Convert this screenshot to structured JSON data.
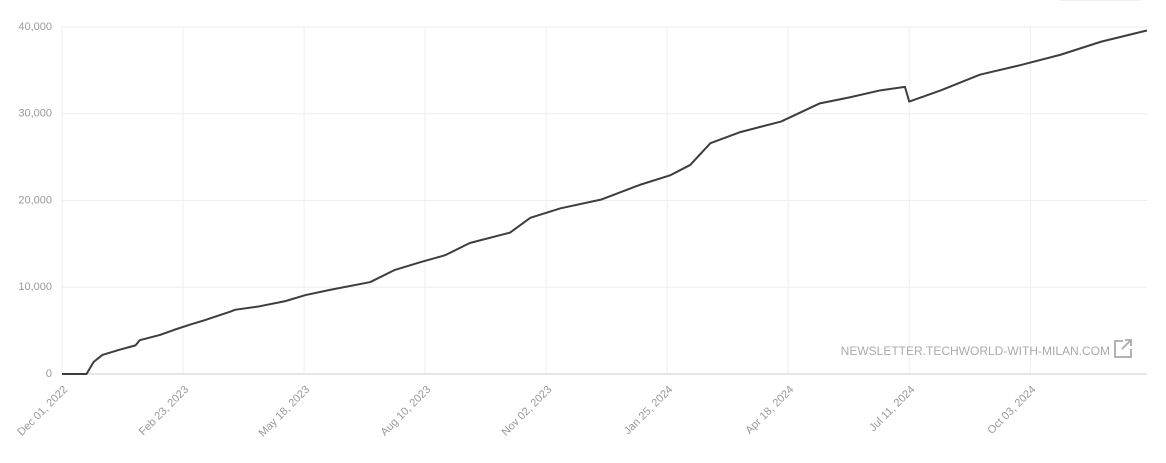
{
  "chart_data": {
    "type": "line",
    "x": [
      "2022-12-01",
      "2022-12-18",
      "2022-12-23",
      "2022-12-29",
      "2023-01-10",
      "2023-01-21",
      "2023-01-24",
      "2023-02-07",
      "2023-02-17",
      "2023-02-28",
      "2023-03-10",
      "2023-03-28",
      "2023-03-31",
      "2023-04-17",
      "2023-05-05",
      "2023-05-19",
      "2023-06-05",
      "2023-07-03",
      "2023-07-20",
      "2023-08-07",
      "2023-08-24",
      "2023-09-10",
      "2023-10-08",
      "2023-10-22",
      "2023-11-12",
      "2023-12-10",
      "2024-01-06",
      "2024-01-27",
      "2024-02-10",
      "2024-02-24",
      "2024-03-16",
      "2024-04-13",
      "2024-05-10",
      "2024-05-31",
      "2024-06-21",
      "2024-07-08",
      "2024-07-11",
      "2024-08-02",
      "2024-08-29",
      "2024-09-26",
      "2024-10-24",
      "2024-11-21",
      "2024-12-23"
    ],
    "series": [
      {
        "color": "#3d3d3d",
        "values": [
          0,
          0,
          1400,
          2200,
          2800,
          3300,
          3900,
          4500,
          5100,
          5700,
          6200,
          7200,
          7400,
          7800,
          8400,
          9100,
          9700,
          10600,
          12000,
          12900,
          13700,
          15100,
          16300,
          18000,
          19100,
          20100,
          21800,
          22900,
          24100,
          26600,
          27900,
          29100,
          31200,
          31900,
          32700,
          33100,
          31400,
          32700,
          34500,
          35600,
          36800,
          38300,
          39600
        ]
      }
    ],
    "xlim": [
      "2022-12-01",
      "2024-12-23"
    ],
    "xticks": [
      {
        "value": "2022-12-01",
        "label": "Dec 01, 2022"
      },
      {
        "value": "2023-02-23",
        "label": "Feb 23, 2023"
      },
      {
        "value": "2023-05-18",
        "label": "May 18, 2023"
      },
      {
        "value": "2023-08-10",
        "label": "Aug 10, 2023"
      },
      {
        "value": "2023-11-02",
        "label": "Nov 02, 2023"
      },
      {
        "value": "2024-01-25",
        "label": "Jan 25, 2024"
      },
      {
        "value": "2024-04-18",
        "label": "Apr 18, 2024"
      },
      {
        "value": "2024-07-11",
        "label": "Jul 11, 2024"
      },
      {
        "value": "2024-10-03",
        "label": "Oct 03, 2024"
      }
    ],
    "ylim": [
      0,
      40000
    ],
    "yticks": [
      0,
      {
        "value": 10000,
        "label": "10,000"
      },
      {
        "value": 20000,
        "label": "20,000"
      },
      {
        "value": 30000,
        "label": "30,000"
      },
      {
        "value": 40000,
        "label": "40,000"
      }
    ],
    "grid": true,
    "source": "NEWSLETTER.TECHWORLD-WITH-MILAN.COM"
  }
}
